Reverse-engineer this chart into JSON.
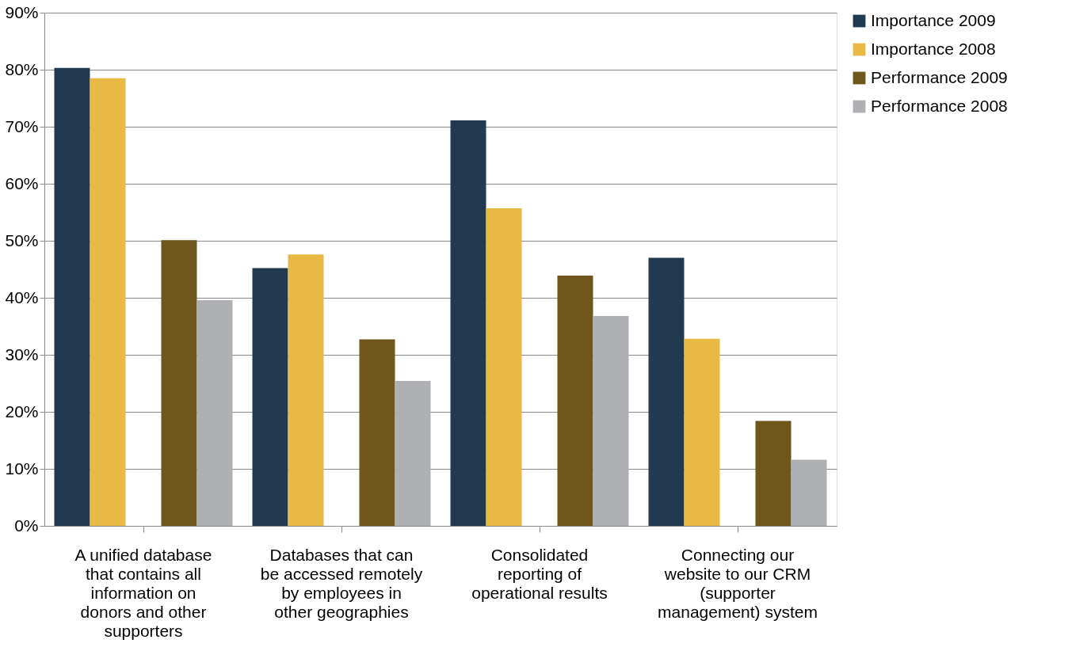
{
  "chart_data": {
    "type": "bar",
    "categories": [
      "A unified database that contains all information on donors and other supporters",
      "Databases that can be accessed remotely by employees in other geographies",
      "Consolidated reporting of operational results",
      "Connecting our website to our CRM (supporter management) system"
    ],
    "series": [
      {
        "name": "Importance 2009",
        "color": "#223a4f",
        "values": [
          80.3,
          45.2,
          71.1,
          47.0
        ]
      },
      {
        "name": "Importance 2008",
        "color": "#e8b945",
        "values": [
          78.5,
          47.6,
          55.7,
          32.8
        ]
      },
      {
        "name": "Performance 2009",
        "color": "#6e561c",
        "values": [
          50.1,
          32.7,
          43.9,
          18.4
        ]
      },
      {
        "name": "Performance 2008",
        "color": "#aeb0b4",
        "values": [
          39.6,
          25.4,
          36.8,
          11.6
        ]
      }
    ],
    "ylim": [
      0,
      90
    ],
    "yticks": [
      {
        "value": 0,
        "label": "0%"
      },
      {
        "value": 10,
        "label": "10%"
      },
      {
        "value": 20,
        "label": "20%"
      },
      {
        "value": 30,
        "label": "30%"
      },
      {
        "value": 40,
        "label": "40%"
      },
      {
        "value": 50,
        "label": "50%"
      },
      {
        "value": 60,
        "label": "60%"
      },
      {
        "value": 70,
        "label": "70%"
      },
      {
        "value": 80,
        "label": "80%"
      },
      {
        "value": 90,
        "label": "90%"
      }
    ],
    "grid": "y",
    "legend": "right"
  }
}
